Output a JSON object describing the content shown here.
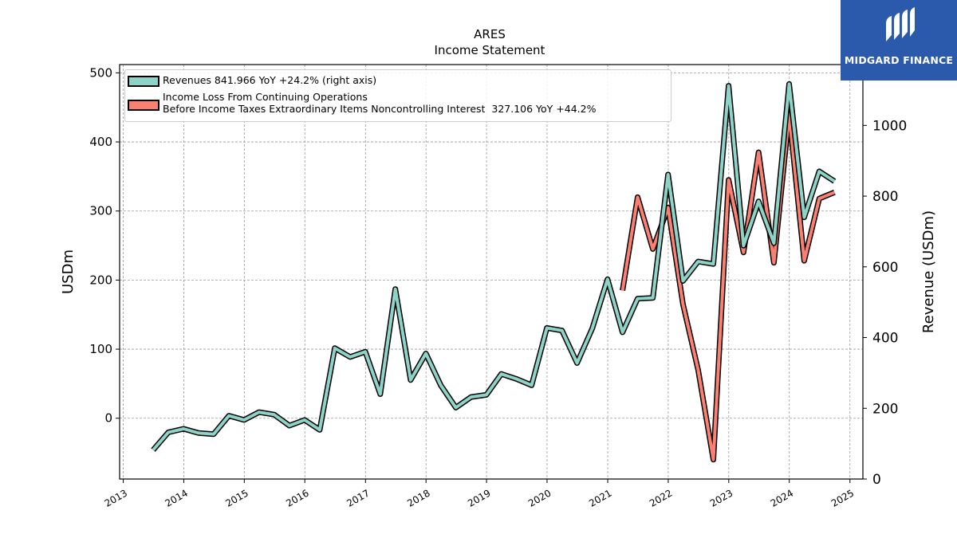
{
  "chart_data": {
    "type": "line",
    "title": "ARES",
    "subtitle": "Income Statement",
    "ylabel": "USDm",
    "ylabel_right": "Revenue (USDm)",
    "ylim": [
      -88,
      512
    ],
    "ylim_right": [
      0,
      1172
    ],
    "yticks": [
      0,
      100,
      200,
      300,
      400,
      500
    ],
    "yticks_right": [
      0,
      200,
      400,
      600,
      800,
      1000
    ],
    "xlim": [
      "2012-12-10",
      "2025-03-20"
    ],
    "xticks": [
      "2013",
      "2014",
      "2015",
      "2016",
      "2017",
      "2018",
      "2019",
      "2020",
      "2021",
      "2022",
      "2023",
      "2024",
      "2025"
    ],
    "grid": true,
    "legend_position": "top-left",
    "series": [
      {
        "name": "Revenues  841.966 YoY +24.2% (right axis)",
        "axis": "right",
        "color": "#8dd3c7",
        "x": [
          "2013-06-30",
          "2013-09-30",
          "2013-12-31",
          "2014-03-31",
          "2014-06-30",
          "2014-09-30",
          "2014-12-31",
          "2015-03-31",
          "2015-06-30",
          "2015-09-30",
          "2015-12-31",
          "2016-03-31",
          "2016-06-30",
          "2016-09-30",
          "2016-12-31",
          "2017-03-31",
          "2017-06-30",
          "2017-09-30",
          "2017-12-31",
          "2018-03-31",
          "2018-06-30",
          "2018-09-30",
          "2018-12-31",
          "2019-03-31",
          "2019-06-30",
          "2019-09-30",
          "2019-12-31",
          "2020-03-31",
          "2020-06-30",
          "2020-09-30",
          "2020-12-31",
          "2021-03-31",
          "2021-06-30",
          "2021-09-30",
          "2021-12-31",
          "2022-03-31",
          "2022-06-30",
          "2022-09-30",
          "2022-12-31",
          "2023-03-31",
          "2023-06-30",
          "2023-09-30",
          "2023-12-31",
          "2024-03-31",
          "2024-06-30",
          "2024-09-30"
        ],
        "values": [
          82,
          132,
          142,
          130,
          127,
          179,
          167,
          189,
          182,
          151,
          167,
          139,
          370,
          345,
          360,
          240,
          537,
          280,
          355,
          265,
          202,
          232,
          238,
          297,
          283,
          265,
          427,
          420,
          328,
          426,
          565,
          415,
          510,
          512,
          861,
          560,
          615,
          608,
          1112,
          660,
          785,
          667,
          1117,
          740,
          870,
          842
        ]
      },
      {
        "name": "Income Loss From Continuing Operations\nBefore Income Taxes Extraordinary Items Noncontrolling Interest  327.106 YoY +44.2%",
        "axis": "left",
        "color": "#fb8072",
        "x": [
          "2021-03-31",
          "2021-06-30",
          "2021-09-30",
          "2021-12-31",
          "2022-03-31",
          "2022-06-30",
          "2022-09-30",
          "2022-12-31",
          "2023-03-31",
          "2023-06-30",
          "2023-09-30",
          "2023-12-31",
          "2024-03-31",
          "2024-06-30",
          "2024-09-30"
        ],
        "values": [
          185,
          320,
          245,
          305,
          165,
          70,
          -60,
          345,
          240,
          385,
          225,
          440,
          228,
          318,
          327
        ]
      }
    ]
  },
  "logo": {
    "text": "MIDGARD FINANCE",
    "color": "#2b5aad"
  }
}
